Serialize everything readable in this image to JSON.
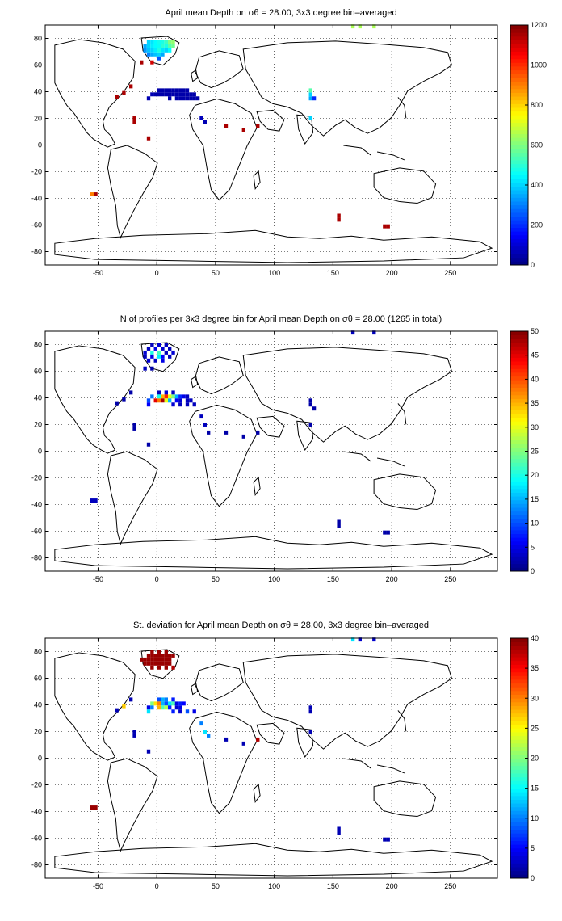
{
  "chart_data": [
    {
      "type": "heatmap",
      "title": "April mean Depth on σθ = 28.00, 3x3 degree bin–averaged",
      "xlim": [
        -95,
        290
      ],
      "ylim": [
        -90,
        90
      ],
      "xticks": [
        "-50",
        "0",
        "50",
        "100",
        "150",
        "200",
        "250"
      ],
      "xtick_values": [
        -50,
        0,
        50,
        100,
        150,
        200,
        250
      ],
      "yticks": [
        "80",
        "60",
        "40",
        "20",
        "0",
        "-20",
        "-40",
        "-60",
        "-80"
      ],
      "ytick_values": [
        80,
        60,
        40,
        20,
        0,
        -20,
        -40,
        -60,
        -80
      ],
      "grid": "dotted",
      "colorbar": {
        "range": [
          0,
          1200
        ],
        "ticks": [
          "0",
          "200",
          "400",
          "600",
          "800",
          "1000",
          "1200"
        ],
        "tick_values": [
          0,
          200,
          400,
          600,
          800,
          1000,
          1200
        ]
      },
      "cells": [
        [
          -7,
          77,
          400
        ],
        [
          -4,
          77,
          420
        ],
        [
          -1,
          77,
          450
        ],
        [
          2,
          77,
          470
        ],
        [
          5,
          77,
          480
        ],
        [
          8,
          77,
          520
        ],
        [
          11,
          77,
          600
        ],
        [
          14,
          77,
          620
        ],
        [
          -10,
          74,
          350
        ],
        [
          -7,
          74,
          400
        ],
        [
          -4,
          74,
          430
        ],
        [
          -1,
          74,
          450
        ],
        [
          2,
          74,
          460
        ],
        [
          5,
          74,
          500
        ],
        [
          8,
          74,
          480
        ],
        [
          11,
          74,
          550
        ],
        [
          14,
          74,
          580
        ],
        [
          -10,
          71,
          330
        ],
        [
          -7,
          71,
          380
        ],
        [
          -4,
          71,
          400
        ],
        [
          -1,
          71,
          430
        ],
        [
          2,
          71,
          480
        ],
        [
          5,
          71,
          420
        ],
        [
          8,
          71,
          400
        ],
        [
          11,
          71,
          450
        ],
        [
          -7,
          68,
          300
        ],
        [
          -4,
          68,
          350
        ],
        [
          -1,
          68,
          380
        ],
        [
          2,
          68,
          400
        ],
        [
          5,
          68,
          350
        ],
        [
          -13,
          62,
          1150
        ],
        [
          -4,
          62,
          1100
        ],
        [
          2,
          65,
          250
        ],
        [
          -22,
          44,
          1150
        ],
        [
          -28,
          39,
          1150
        ],
        [
          -34,
          36,
          1150
        ],
        [
          2,
          41,
          50
        ],
        [
          5,
          41,
          50
        ],
        [
          8,
          41,
          50
        ],
        [
          11,
          41,
          50
        ],
        [
          14,
          41,
          50
        ],
        [
          17,
          41,
          50
        ],
        [
          20,
          41,
          50
        ],
        [
          23,
          41,
          50
        ],
        [
          26,
          41,
          50
        ],
        [
          -4,
          38,
          60
        ],
        [
          -1,
          38,
          50
        ],
        [
          2,
          38,
          50
        ],
        [
          5,
          38,
          50
        ],
        [
          8,
          38,
          50
        ],
        [
          11,
          38,
          50
        ],
        [
          14,
          38,
          50
        ],
        [
          17,
          38,
          50
        ],
        [
          20,
          38,
          50
        ],
        [
          23,
          38,
          50
        ],
        [
          26,
          38,
          50
        ],
        [
          29,
          38,
          50
        ],
        [
          32,
          38,
          50
        ],
        [
          -7,
          35,
          60
        ],
        [
          11,
          35,
          50
        ],
        [
          17,
          35,
          50
        ],
        [
          20,
          35,
          50
        ],
        [
          23,
          35,
          50
        ],
        [
          26,
          35,
          50
        ],
        [
          29,
          35,
          50
        ],
        [
          32,
          35,
          50
        ],
        [
          35,
          35,
          50
        ],
        [
          38,
          20,
          70
        ],
        [
          41,
          17,
          60
        ],
        [
          -19,
          17,
          1150
        ],
        [
          -19,
          20,
          1150
        ],
        [
          -7,
          5,
          1150
        ],
        [
          59,
          14,
          1150
        ],
        [
          74,
          11,
          1150
        ],
        [
          86,
          14,
          1150
        ],
        [
          131,
          35,
          350
        ],
        [
          131,
          38,
          400
        ],
        [
          131,
          41,
          550
        ],
        [
          134,
          35,
          200
        ],
        [
          131,
          20,
          400
        ],
        [
          167,
          89,
          650
        ],
        [
          173,
          89,
          650
        ],
        [
          185,
          89,
          650
        ],
        [
          -52,
          -37,
          1150
        ],
        [
          -55,
          -37,
          900
        ],
        [
          155,
          -53,
          1150
        ],
        [
          155,
          -56,
          1150
        ],
        [
          194,
          -61,
          1150
        ],
        [
          197,
          -61,
          1150
        ]
      ]
    },
    {
      "type": "heatmap",
      "title": "N of profiles per 3x3 degree bin for April mean Depth on σθ = 28.00 (1265 in total)",
      "xlim": [
        -95,
        290
      ],
      "ylim": [
        -90,
        90
      ],
      "xticks": [
        "-50",
        "0",
        "50",
        "100",
        "150",
        "200",
        "250"
      ],
      "xtick_values": [
        -50,
        0,
        50,
        100,
        150,
        200,
        250
      ],
      "yticks": [
        "80",
        "60",
        "40",
        "20",
        "0",
        "-20",
        "-40",
        "-60",
        "-80"
      ],
      "ytick_values": [
        80,
        60,
        40,
        20,
        0,
        -20,
        -40,
        -60,
        -80
      ],
      "grid": "dotted",
      "colorbar": {
        "range": [
          0,
          50
        ],
        "ticks": [
          "0",
          "5",
          "10",
          "15",
          "20",
          "25",
          "30",
          "35",
          "40",
          "45",
          "50"
        ],
        "tick_values": [
          0,
          5,
          10,
          15,
          20,
          25,
          30,
          35,
          40,
          45,
          50
        ]
      },
      "cells": [
        [
          -4,
          80,
          3
        ],
        [
          2,
          80,
          4
        ],
        [
          8,
          80,
          3
        ],
        [
          -7,
          77,
          3
        ],
        [
          -1,
          77,
          5
        ],
        [
          5,
          77,
          4
        ],
        [
          11,
          77,
          3
        ],
        [
          -10,
          74,
          4
        ],
        [
          -4,
          74,
          20
        ],
        [
          2,
          74,
          22
        ],
        [
          8,
          74,
          3
        ],
        [
          14,
          74,
          4
        ],
        [
          -10,
          71,
          3
        ],
        [
          -4,
          71,
          5
        ],
        [
          2,
          71,
          18
        ],
        [
          5,
          71,
          6
        ],
        [
          11,
          71,
          3
        ],
        [
          -7,
          68,
          4
        ],
        [
          -1,
          68,
          3
        ],
        [
          5,
          68,
          5
        ],
        [
          -10,
          62,
          3
        ],
        [
          -4,
          62,
          2
        ],
        [
          -22,
          44,
          2
        ],
        [
          -28,
          39,
          2
        ],
        [
          -34,
          36,
          2
        ],
        [
          2,
          44,
          3
        ],
        [
          8,
          44,
          4
        ],
        [
          14,
          44,
          3
        ],
        [
          -4,
          41,
          12
        ],
        [
          2,
          41,
          20
        ],
        [
          5,
          41,
          35
        ],
        [
          8,
          41,
          42
        ],
        [
          11,
          41,
          30
        ],
        [
          14,
          41,
          25
        ],
        [
          17,
          41,
          15
        ],
        [
          20,
          41,
          8
        ],
        [
          23,
          41,
          5
        ],
        [
          26,
          41,
          3
        ],
        [
          -7,
          38,
          10
        ],
        [
          -1,
          38,
          45
        ],
        [
          2,
          38,
          38
        ],
        [
          5,
          38,
          48
        ],
        [
          8,
          38,
          30
        ],
        [
          11,
          38,
          15
        ],
        [
          17,
          38,
          6
        ],
        [
          20,
          38,
          4
        ],
        [
          26,
          38,
          3
        ],
        [
          29,
          38,
          3
        ],
        [
          -7,
          35,
          6
        ],
        [
          14,
          35,
          4
        ],
        [
          20,
          35,
          3
        ],
        [
          26,
          35,
          3
        ],
        [
          32,
          35,
          3
        ],
        [
          38,
          26,
          3
        ],
        [
          41,
          20,
          3
        ],
        [
          44,
          14,
          2
        ],
        [
          -19,
          20,
          2
        ],
        [
          -19,
          17,
          2
        ],
        [
          -7,
          5,
          2
        ],
        [
          59,
          14,
          2
        ],
        [
          74,
          11,
          2
        ],
        [
          86,
          14,
          2
        ],
        [
          131,
          38,
          2
        ],
        [
          131,
          35,
          2
        ],
        [
          134,
          32,
          2
        ],
        [
          131,
          20,
          2
        ],
        [
          167,
          89,
          3
        ],
        [
          185,
          89,
          3
        ],
        [
          -52,
          -37,
          3
        ],
        [
          -55,
          -37,
          3
        ],
        [
          155,
          -53,
          2
        ],
        [
          155,
          -56,
          2
        ],
        [
          194,
          -61,
          2
        ],
        [
          197,
          -61,
          2
        ]
      ]
    },
    {
      "type": "heatmap",
      "title": "St. deviation for April mean Depth on σθ = 28.00, 3x3 degree bin–averaged",
      "xlim": [
        -95,
        290
      ],
      "ylim": [
        -90,
        90
      ],
      "xticks": [
        "-50",
        "0",
        "50",
        "100",
        "150",
        "200",
        "250"
      ],
      "xtick_values": [
        -50,
        0,
        50,
        100,
        150,
        200,
        250
      ],
      "yticks": [
        "80",
        "60",
        "40",
        "20",
        "0",
        "-20",
        "-40",
        "-60",
        "-80"
      ],
      "ytick_values": [
        80,
        60,
        40,
        20,
        0,
        -20,
        -40,
        -60,
        -80
      ],
      "grid": "dotted",
      "colorbar": {
        "range": [
          0,
          40
        ],
        "ticks": [
          "0",
          "5",
          "10",
          "15",
          "20",
          "25",
          "30",
          "35",
          "40"
        ],
        "tick_values": [
          0,
          5,
          10,
          15,
          20,
          25,
          30,
          35,
          40
        ]
      },
      "cells": [
        [
          -4,
          80,
          39
        ],
        [
          2,
          80,
          39
        ],
        [
          8,
          80,
          39
        ],
        [
          -7,
          77,
          39
        ],
        [
          -4,
          77,
          39
        ],
        [
          -1,
          77,
          39
        ],
        [
          2,
          77,
          39
        ],
        [
          5,
          77,
          39
        ],
        [
          8,
          77,
          39
        ],
        [
          11,
          77,
          39
        ],
        [
          14,
          77,
          39
        ],
        [
          -13,
          74,
          39
        ],
        [
          -10,
          74,
          39
        ],
        [
          -7,
          74,
          39
        ],
        [
          -4,
          74,
          39
        ],
        [
          -1,
          74,
          39
        ],
        [
          2,
          74,
          39
        ],
        [
          5,
          74,
          39
        ],
        [
          8,
          74,
          39
        ],
        [
          11,
          74,
          39
        ],
        [
          -10,
          71,
          39
        ],
        [
          -7,
          71,
          39
        ],
        [
          -4,
          71,
          39
        ],
        [
          -1,
          71,
          39
        ],
        [
          2,
          71,
          39
        ],
        [
          5,
          71,
          39
        ],
        [
          8,
          71,
          39
        ],
        [
          11,
          71,
          39
        ],
        [
          -4,
          68,
          39
        ],
        [
          2,
          68,
          39
        ],
        [
          8,
          68,
          39
        ],
        [
          14,
          68,
          38
        ],
        [
          -22,
          44,
          2
        ],
        [
          -28,
          39,
          27
        ],
        [
          -34,
          36,
          2
        ],
        [
          2,
          44,
          8
        ],
        [
          5,
          44,
          12
        ],
        [
          8,
          44,
          10
        ],
        [
          14,
          44,
          6
        ],
        [
          -4,
          41,
          20
        ],
        [
          -1,
          41,
          26
        ],
        [
          2,
          41,
          30
        ],
        [
          5,
          41,
          12
        ],
        [
          8,
          41,
          8
        ],
        [
          11,
          41,
          14
        ],
        [
          14,
          41,
          18
        ],
        [
          17,
          41,
          4
        ],
        [
          20,
          41,
          6
        ],
        [
          23,
          41,
          5
        ],
        [
          -7,
          38,
          4
        ],
        [
          -4,
          38,
          10
        ],
        [
          2,
          38,
          28
        ],
        [
          5,
          38,
          18
        ],
        [
          8,
          38,
          22
        ],
        [
          11,
          38,
          6
        ],
        [
          17,
          38,
          3
        ],
        [
          20,
          38,
          4
        ],
        [
          -7,
          35,
          14
        ],
        [
          14,
          35,
          6
        ],
        [
          20,
          35,
          3
        ],
        [
          26,
          35,
          8
        ],
        [
          32,
          35,
          4
        ],
        [
          38,
          26,
          10
        ],
        [
          41,
          20,
          14
        ],
        [
          44,
          17,
          10
        ],
        [
          -19,
          20,
          2
        ],
        [
          -19,
          17,
          2
        ],
        [
          -7,
          5,
          2
        ],
        [
          59,
          14,
          2
        ],
        [
          74,
          11,
          2
        ],
        [
          86,
          14,
          38
        ],
        [
          131,
          38,
          2
        ],
        [
          131,
          35,
          2
        ],
        [
          131,
          20,
          2
        ],
        [
          167,
          89,
          14
        ],
        [
          173,
          89,
          3
        ],
        [
          185,
          89,
          3
        ],
        [
          -52,
          -37,
          39
        ],
        [
          -55,
          -37,
          39
        ],
        [
          155,
          -53,
          2
        ],
        [
          155,
          -56,
          2
        ],
        [
          194,
          -61,
          2
        ],
        [
          197,
          -61,
          2
        ]
      ]
    }
  ]
}
